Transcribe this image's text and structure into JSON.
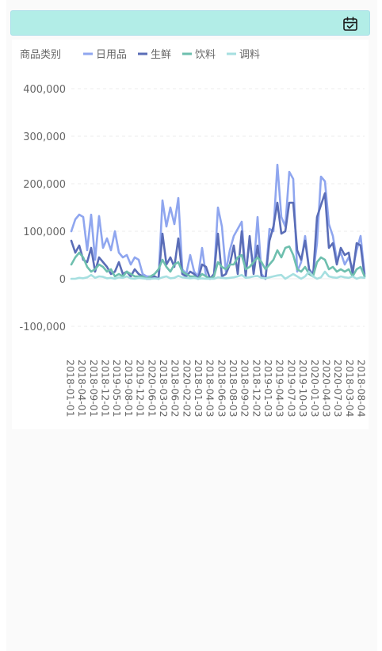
{
  "header": {
    "calendar_icon": "calendar-check-icon",
    "background_color": "#b2ede7"
  },
  "legend": {
    "title": "商品类别"
  },
  "chart_data": {
    "type": "line",
    "ylim": [
      -100000,
      400000
    ],
    "y_ticks": [
      -100000,
      0,
      100000,
      200000,
      300000,
      400000
    ],
    "y_tick_labels": [
      "-100,000",
      "0",
      "100,000",
      "200,000",
      "300,000",
      "400,000"
    ],
    "grid": true,
    "legend_position": "top-left",
    "x_tick_labels": [
      "2018-01-01",
      "2018-04-01",
      "2018-09-01",
      "2018-12-01",
      "2019-05-01",
      "2019-08-01",
      "2019-12-01",
      "2020-06-01",
      "2018-03-02",
      "2018-06-02",
      "2020-02-02",
      "2018-01-03",
      "2018-04-03",
      "2018-06-03",
      "2018-08-03",
      "2018-09-02",
      "2018-12-02",
      "2019-01-03",
      "2019-04-03",
      "2019-07-03",
      "2019-10-03",
      "2020-01-03",
      "2020-04-03",
      "2020-07-03",
      "2018-03-04",
      "2018-08-04"
    ],
    "series": [
      {
        "name": "日用品",
        "color": "#8fa6ef",
        "values": [
          100000,
          125000,
          135000,
          130000,
          60000,
          135000,
          40000,
          132000,
          65000,
          85000,
          60000,
          100000,
          55000,
          45000,
          50000,
          30000,
          45000,
          40000,
          10000,
          5000,
          5000,
          5000,
          0,
          165000,
          110000,
          150000,
          115000,
          170000,
          20000,
          10000,
          50000,
          15000,
          5000,
          65000,
          5000,
          0,
          5000,
          150000,
          110000,
          15000,
          60000,
          90000,
          105000,
          120000,
          10000,
          80000,
          20000,
          130000,
          10000,
          0,
          105000,
          100000,
          240000,
          130000,
          110000,
          225000,
          210000,
          15000,
          35000,
          90000,
          20000,
          10000,
          75000,
          215000,
          205000,
          115000,
          90000,
          40000,
          55000,
          30000,
          45000,
          20000,
          60000,
          90000,
          10000
        ]
      },
      {
        "name": "生鲜",
        "color": "#5a6db7",
        "values": [
          80000,
          55000,
          70000,
          40000,
          35000,
          65000,
          15000,
          45000,
          35000,
          25000,
          10000,
          15000,
          35000,
          10000,
          15000,
          5000,
          20000,
          10000,
          5000,
          0,
          0,
          5000,
          0,
          95000,
          30000,
          45000,
          25000,
          85000,
          10000,
          5000,
          15000,
          10000,
          0,
          30000,
          25000,
          0,
          10000,
          95000,
          5000,
          10000,
          30000,
          70000,
          10000,
          100000,
          5000,
          90000,
          10000,
          70000,
          5000,
          0,
          80000,
          110000,
          160000,
          95000,
          100000,
          160000,
          160000,
          60000,
          40000,
          80000,
          20000,
          5000,
          130000,
          155000,
          180000,
          65000,
          75000,
          30000,
          65000,
          50000,
          55000,
          10000,
          75000,
          70000,
          5000
        ]
      },
      {
        "name": "饮料",
        "color": "#6ebfae",
        "values": [
          30000,
          45000,
          55000,
          45000,
          25000,
          15000,
          20000,
          30000,
          25000,
          15000,
          20000,
          5000,
          10000,
          5000,
          15000,
          10000,
          5000,
          5000,
          5000,
          0,
          5000,
          10000,
          20000,
          40000,
          25000,
          15000,
          30000,
          35000,
          15000,
          10000,
          5000,
          5000,
          0,
          10000,
          5000,
          0,
          5000,
          35000,
          25000,
          20000,
          30000,
          30000,
          45000,
          50000,
          20000,
          25000,
          35000,
          45000,
          35000,
          20000,
          30000,
          40000,
          60000,
          45000,
          65000,
          68000,
          50000,
          20000,
          15000,
          25000,
          10000,
          5000,
          35000,
          45000,
          40000,
          20000,
          25000,
          15000,
          20000,
          15000,
          20000,
          5000,
          20000,
          25000,
          5000
        ]
      },
      {
        "name": "调料",
        "color": "#a6dfe0",
        "values": [
          0,
          0,
          2000,
          1000,
          3000,
          8000,
          2000,
          5000,
          4000,
          1000,
          2000,
          0,
          3000,
          2000,
          5000,
          1000,
          0,
          2000,
          1000,
          0,
          0,
          1000,
          0,
          3000,
          5000,
          1000,
          2000,
          6000,
          3000,
          2000,
          1000,
          2000,
          0,
          1000,
          0,
          0,
          0,
          3000,
          2000,
          1000,
          2000,
          3000,
          5000,
          8000,
          2000,
          3000,
          5000,
          6000,
          2000,
          1000,
          3000,
          5000,
          7000,
          8000,
          0,
          5000,
          10000,
          5000,
          0,
          5000,
          15000,
          5000,
          0,
          3000,
          15000,
          5000,
          3000,
          2000,
          5000,
          3000,
          2000,
          5000,
          0,
          3000,
          2000
        ]
      }
    ]
  }
}
